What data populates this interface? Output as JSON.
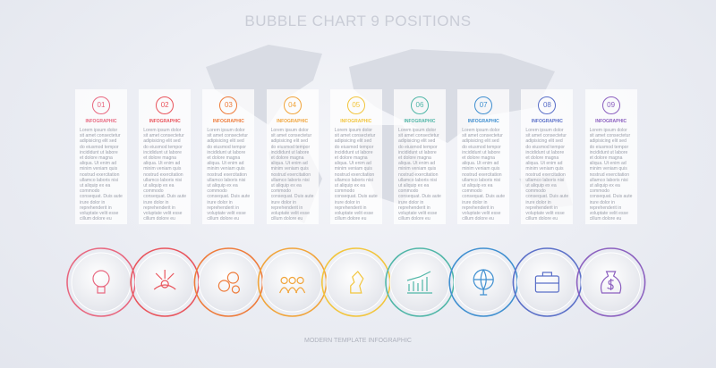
{
  "header": {
    "title": "BUBBLE CHART 9 POSITIONS"
  },
  "panels": [
    {
      "number": "01",
      "label": "INFOGRAPHIC",
      "text": "Lorem ipsum dolor sit amet consectetur adipisicing elit sed do eiusmod tempor incididunt ut labore et dolore magna aliqua. Ut enim ad minim veniam quis nostrud exercitation ullamco laboris nisi ut aliquip ex ea commodo consequat. Duis aute irure dolor in reprehenderit in voluptate velit esse cillum dolore eu fugiat nulla pariatur."
    },
    {
      "number": "02",
      "label": "INFOGRAPHIC",
      "text": "Lorem ipsum dolor sit amet consectetur adipisicing elit sed do eiusmod tempor incididunt ut labore et dolore magna aliqua. Ut enim ad minim veniam quis nostrud exercitation ullamco laboris nisi ut aliquip ex ea commodo consequat. Duis aute irure dolor in reprehenderit in voluptate velit esse cillum dolore eu fugiat nulla pariatur."
    },
    {
      "number": "03",
      "label": "INFOGRAPHIC",
      "text": "Lorem ipsum dolor sit amet consectetur adipisicing elit sed do eiusmod tempor incididunt ut labore et dolore magna aliqua. Ut enim ad minim veniam quis nostrud exercitation ullamco laboris nisi ut aliquip ex ea commodo consequat. Duis aute irure dolor in reprehenderit in voluptate velit esse cillum dolore eu fugiat nulla pariatur."
    },
    {
      "number": "04",
      "label": "INFOGRAPHIC",
      "text": "Lorem ipsum dolor sit amet consectetur adipisicing elit sed do eiusmod tempor incididunt ut labore et dolore magna aliqua. Ut enim ad minim veniam quis nostrud exercitation ullamco laboris nisi ut aliquip ex ea commodo consequat. Duis aute irure dolor in reprehenderit in voluptate velit esse cillum dolore eu fugiat nulla pariatur."
    },
    {
      "number": "05",
      "label": "INFOGRAPHIC",
      "text": "Lorem ipsum dolor sit amet consectetur adipisicing elit sed do eiusmod tempor incididunt ut labore et dolore magna aliqua. Ut enim ad minim veniam quis nostrud exercitation ullamco laboris nisi ut aliquip ex ea commodo consequat. Duis aute irure dolor in reprehenderit in voluptate velit esse cillum dolore eu fugiat nulla pariatur."
    },
    {
      "number": "06",
      "label": "INFOGRAPHIC",
      "text": "Lorem ipsum dolor sit amet consectetur adipisicing elit sed do eiusmod tempor incididunt ut labore et dolore magna aliqua. Ut enim ad minim veniam quis nostrud exercitation ullamco laboris nisi ut aliquip ex ea commodo consequat. Duis aute irure dolor in reprehenderit in voluptate velit esse cillum dolore eu fugiat nulla pariatur."
    },
    {
      "number": "07",
      "label": "INFOGRAPHIC",
      "text": "Lorem ipsum dolor sit amet consectetur adipisicing elit sed do eiusmod tempor incididunt ut labore et dolore magna aliqua. Ut enim ad minim veniam quis nostrud exercitation ullamco laboris nisi ut aliquip ex ea commodo consequat. Duis aute irure dolor in reprehenderit in voluptate velit esse cillum dolore eu fugiat nulla pariatur."
    },
    {
      "number": "08",
      "label": "INFOGRAPHIC",
      "text": "Lorem ipsum dolor sit amet consectetur adipisicing elit sed do eiusmod tempor incididunt ut labore et dolore magna aliqua. Ut enim ad minim veniam quis nostrud exercitation ullamco laboris nisi ut aliquip ex ea commodo consequat. Duis aute irure dolor in reprehenderit in voluptate velit esse cillum dolore eu fugiat nulla pariatur."
    },
    {
      "number": "09",
      "label": "INFOGRAPHIC",
      "text": "Lorem ipsum dolor sit amet consectetur adipisicing elit sed do eiusmod tempor incididunt ut labore et dolore magna aliqua. Ut enim ad minim veniam quis nostrud exercitation ullamco laboris nisi ut aliquip ex ea commodo consequat. Duis aute irure dolor in reprehenderit in voluptate velit esse cillum dolore eu fugiat nulla pariatur."
    }
  ],
  "footer": {
    "caption": "MODERN TEMPLATE INFOGRAPHIC"
  }
}
